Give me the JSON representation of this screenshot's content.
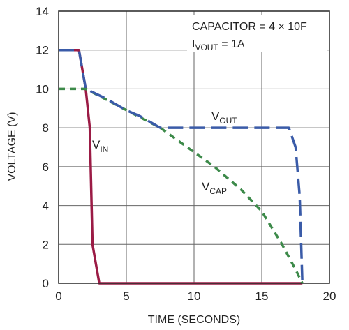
{
  "chart_data": {
    "type": "line",
    "xlabel": "TIME (SECONDS)",
    "ylabel": "VOLTAGE (V)",
    "xlim": [
      0,
      20
    ],
    "ylim": [
      0,
      14
    ],
    "xticks": [
      0,
      5,
      10,
      15,
      20
    ],
    "yticks": [
      0,
      2,
      4,
      6,
      8,
      10,
      12,
      14
    ],
    "xtick_labels": [
      "0",
      "5",
      "10",
      "15",
      "20"
    ],
    "ytick_labels": [
      "0",
      "2",
      "4",
      "6",
      "8",
      "10",
      "12",
      "14"
    ],
    "grid": true,
    "annotations": {
      "line1": "CAPACITOR = 4 × 10F",
      "line2_main": "I",
      "line2_sub": "VOUT",
      "line2_rest": " = 1A"
    },
    "series": [
      {
        "name": "VIN",
        "label_main": "V",
        "label_sub": "IN",
        "color": "#9b1b45",
        "style": "solid",
        "x": [
          0,
          1.5,
          2.0,
          2.3,
          2.5,
          2.9,
          3.0,
          18.0
        ],
        "y": [
          12,
          12,
          10.0,
          8.0,
          2.0,
          0.4,
          0,
          0
        ]
      },
      {
        "name": "VOUT",
        "label_main": "V",
        "label_sub": "OUT",
        "color": "#3a5ba8",
        "style": "longdash",
        "x": [
          0,
          1.5,
          2.0,
          3.5,
          5.0,
          6.0,
          7.5,
          17.0,
          17.5,
          17.8,
          18.0
        ],
        "y": [
          12,
          12,
          10.0,
          9.5,
          8.9,
          8.6,
          8.0,
          8.0,
          7.0,
          4.5,
          0
        ]
      },
      {
        "name": "VCAP",
        "label_main": "V",
        "label_sub": "CAP",
        "color": "#3d8a4a",
        "style": "dashed",
        "x": [
          0,
          1.5,
          2.0,
          7.5,
          9.5,
          11.5,
          13.5,
          15.0,
          16.5,
          17.5,
          18.0
        ],
        "y": [
          10.0,
          10.0,
          10.0,
          8.0,
          7.0,
          6.0,
          4.8,
          3.7,
          2.0,
          0.7,
          0
        ]
      }
    ]
  }
}
